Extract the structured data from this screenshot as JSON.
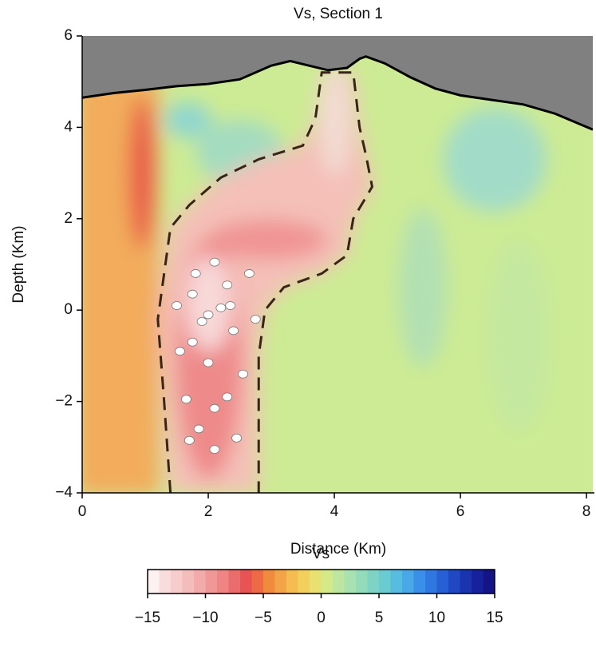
{
  "chart_data": {
    "type": "section",
    "title": "Vs, Section 1",
    "x_label": "Distance (Km)",
    "y_label": "Depth (Km)",
    "xlim": [
      0,
      8.1
    ],
    "ylim": [
      -4,
      6
    ],
    "xticks": [
      0,
      2,
      4,
      6,
      8
    ],
    "yticks": [
      {
        "value": -4,
        "label": "−4"
      },
      {
        "value": -2,
        "label": "−2"
      },
      0,
      2,
      4,
      6
    ],
    "topography": {
      "x": [
        0,
        0.5,
        1,
        1.5,
        2,
        2.5,
        3,
        3.3,
        3.6,
        3.9,
        4.2,
        4.4,
        4.5,
        4.8,
        5.2,
        5.6,
        6,
        6.5,
        7,
        7.5,
        8.1
      ],
      "y": [
        4.65,
        4.75,
        4.82,
        4.9,
        4.95,
        5.05,
        5.35,
        5.45,
        5.35,
        5.25,
        5.3,
        5.5,
        5.55,
        5.4,
        5.1,
        4.85,
        4.7,
        4.6,
        4.5,
        4.3,
        3.95
      ],
      "color": "#000000",
      "fill": "#808080"
    },
    "outline": {
      "x": [
        1.4,
        1.3,
        1.2,
        1.4,
        1.7,
        2.2,
        2.8,
        3.5,
        3.7,
        3.8,
        4.3,
        4.4,
        4.5,
        4.6,
        4.3,
        4.2,
        3.8,
        3.2,
        2.9,
        2.8,
        2.8
      ],
      "y": [
        -4,
        -2,
        -0.2,
        1.8,
        2.3,
        2.9,
        3.3,
        3.6,
        4.2,
        5.2,
        5.2,
        4,
        3.4,
        2.7,
        2,
        1.2,
        0.8,
        0.5,
        0,
        -1,
        -4
      ],
      "color": "#3a2418"
    },
    "events": {
      "x": [
        2.1,
        1.8,
        2.3,
        2.65,
        1.75,
        2.2,
        2.0,
        2.35,
        1.5,
        2.75,
        1.9,
        2.4,
        1.75,
        1.55,
        2.0,
        2.55,
        2.3,
        1.65,
        2.1,
        1.85,
        1.7,
        2.45,
        2.1
      ],
      "y": [
        1.05,
        0.8,
        0.55,
        0.8,
        0.35,
        0.05,
        -0.1,
        0.1,
        0.1,
        -0.2,
        -0.25,
        -0.45,
        -0.7,
        -0.9,
        -1.15,
        -1.4,
        -1.9,
        -1.95,
        -2.15,
        -2.6,
        -2.85,
        -2.8,
        -3.05
      ],
      "color": "#ffffff"
    },
    "colorbar": {
      "title": "Vs",
      "clim": [
        -15,
        15
      ],
      "ticks": [
        {
          "value": -15,
          "label": "−15"
        },
        {
          "value": -10,
          "label": "−10"
        },
        {
          "value": -5,
          "label": "−5"
        },
        0,
        5,
        10,
        15
      ],
      "colormap": [
        "#fdf2f2",
        "#f9dcdc",
        "#f7cccc",
        "#f5bcbc",
        "#f3aaaa",
        "#f09898",
        "#ee8484",
        "#eb6c6c",
        "#e85454",
        "#ec6a44",
        "#f08a3c",
        "#f3a448",
        "#f5bc52",
        "#f2d05e",
        "#e8e070",
        "#d4ea88",
        "#bde6a0",
        "#a8e2b0",
        "#92dcbc",
        "#7ed4c4",
        "#6acbd0",
        "#58bce0",
        "#48a8e8",
        "#3a90e8",
        "#2e78e0",
        "#2660d4",
        "#2048c4",
        "#1a34b0",
        "#16229c",
        "#141486"
      ]
    }
  }
}
